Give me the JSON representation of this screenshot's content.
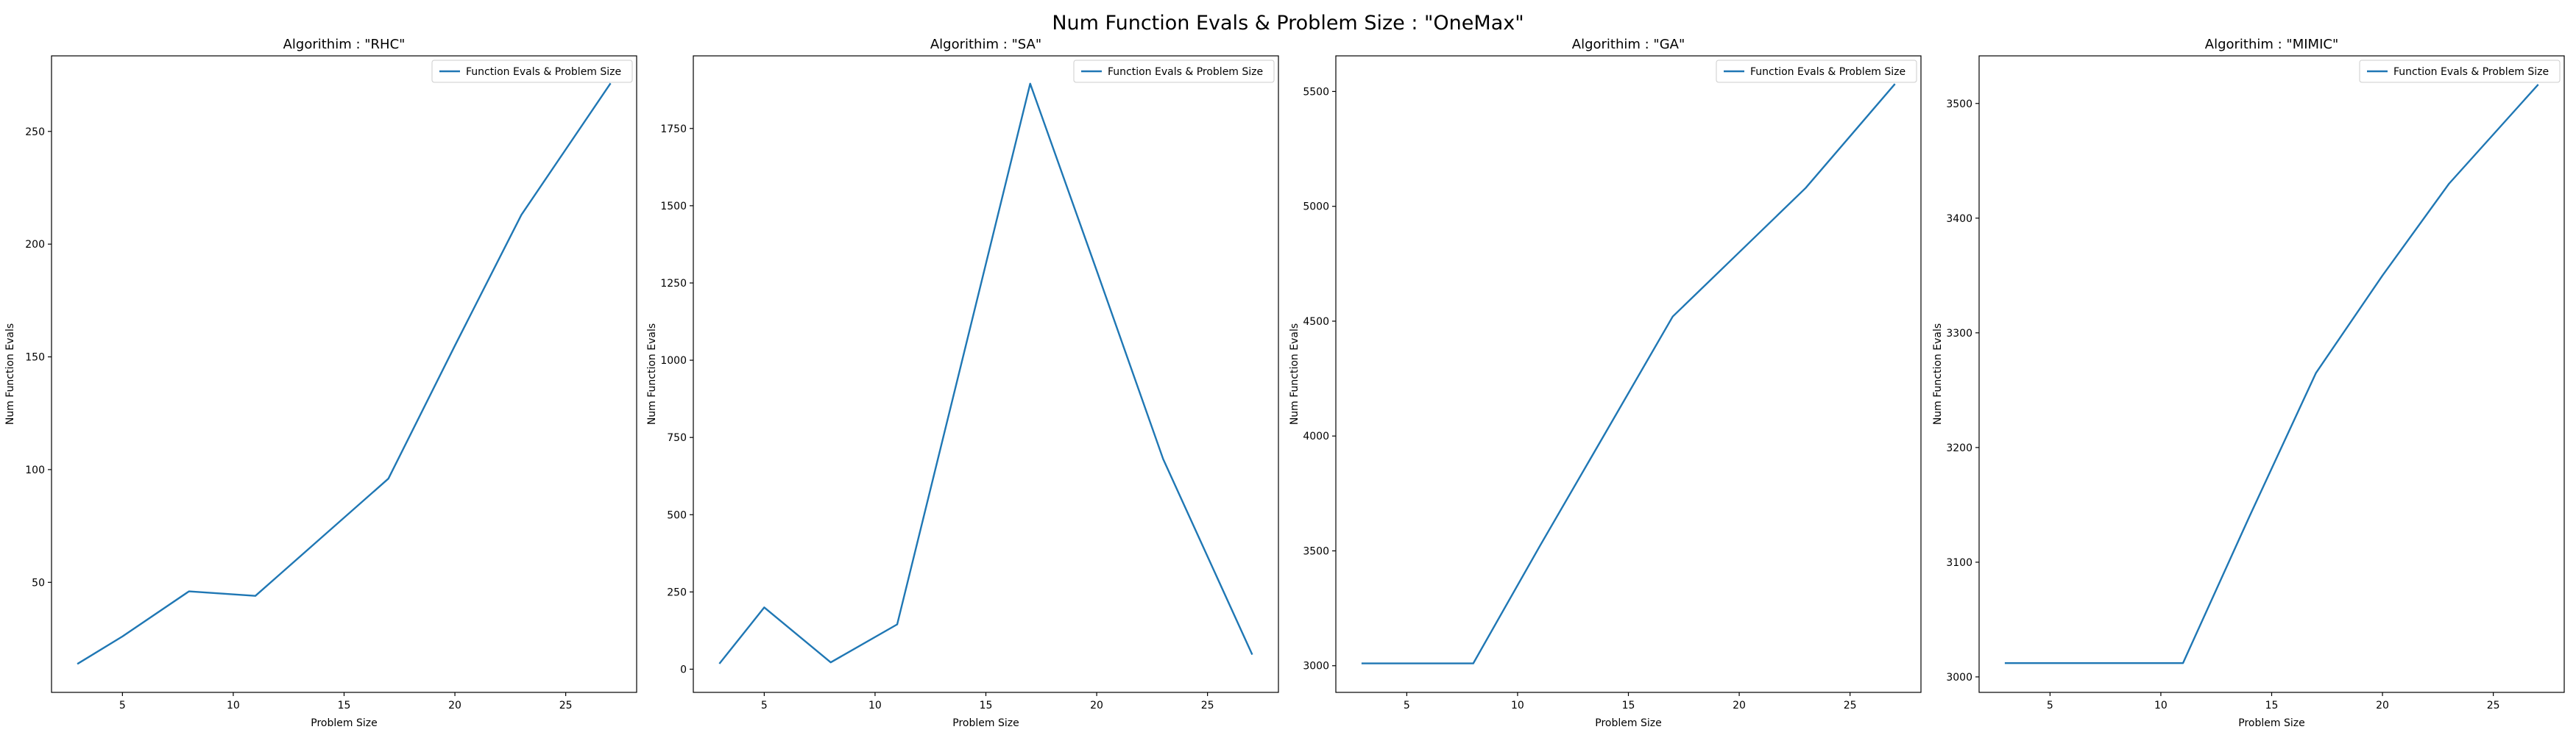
{
  "figure": {
    "suptitle": "Num Function Evals & Problem Size : \"OneMax\""
  },
  "colors": {
    "line": "#1f77b4",
    "axes_edge": "#000000",
    "legend_edge": "#cccccc"
  },
  "chart_data": [
    {
      "type": "line",
      "title": "Algorithim : \"RHC\"",
      "xlabel": "Problem Size",
      "ylabel": "Num Function Evals",
      "xlim": [
        1.8,
        28.2
      ],
      "ylim": [
        1.2,
        283.5
      ],
      "xticks": [
        5,
        10,
        15,
        20,
        25
      ],
      "yticks": [
        50,
        100,
        150,
        200,
        250
      ],
      "legend": "top-right",
      "series": [
        {
          "name": "Function Evals & Problem Size",
          "x": [
            3,
            5,
            8,
            11,
            14,
            17,
            20,
            23,
            27
          ],
          "y": [
            14,
            26,
            46,
            44,
            70,
            96,
            155,
            213,
            271
          ]
        }
      ]
    },
    {
      "type": "line",
      "title": "Algorithim : \"SA\"",
      "xlabel": "Problem Size",
      "ylabel": "Num Function Evals",
      "xlim": [
        1.8,
        28.2
      ],
      "ylim": [
        -75,
        1985
      ],
      "xticks": [
        5,
        10,
        15,
        20,
        25
      ],
      "yticks": [
        0,
        250,
        500,
        750,
        1000,
        1250,
        1500,
        1750
      ],
      "legend": "top-right",
      "series": [
        {
          "name": "Function Evals & Problem Size",
          "x": [
            3,
            5,
            8,
            11,
            14,
            17,
            20,
            23,
            27
          ],
          "y": [
            20,
            200,
            22,
            145,
            1020,
            1895,
            1290,
            680,
            50
          ]
        }
      ]
    },
    {
      "type": "line",
      "title": "Algorithim : \"GA\"",
      "xlabel": "Problem Size",
      "ylabel": "Num Function Evals",
      "xlim": [
        1.8,
        28.2
      ],
      "ylim": [
        2884,
        5655
      ],
      "xticks": [
        5,
        10,
        15,
        20,
        25
      ],
      "yticks": [
        3000,
        3500,
        4000,
        4500,
        5000,
        5500
      ],
      "legend": "top-right",
      "series": [
        {
          "name": "Function Evals & Problem Size",
          "x": [
            3,
            5,
            8,
            11,
            14,
            17,
            20,
            23,
            27
          ],
          "y": [
            3010,
            3010,
            3010,
            3520,
            4020,
            4520,
            4800,
            5080,
            5530
          ]
        }
      ]
    },
    {
      "type": "line",
      "title": "Algorithim : \"MIMIC\"",
      "xlabel": "Problem Size",
      "ylabel": "Num Function Evals",
      "xlim": [
        1.8,
        28.2
      ],
      "ylim": [
        2986.5,
        3541.5
      ],
      "xticks": [
        5,
        10,
        15,
        20,
        25
      ],
      "yticks": [
        3000,
        3100,
        3200,
        3300,
        3400,
        3500
      ],
      "legend": "top-right",
      "series": [
        {
          "name": "Function Evals & Problem Size",
          "x": [
            3,
            5,
            8,
            11,
            14,
            17,
            20,
            23,
            27
          ],
          "y": [
            3012,
            3012,
            3012,
            3012,
            3140,
            3265,
            3350,
            3430,
            3516
          ]
        }
      ]
    }
  ]
}
